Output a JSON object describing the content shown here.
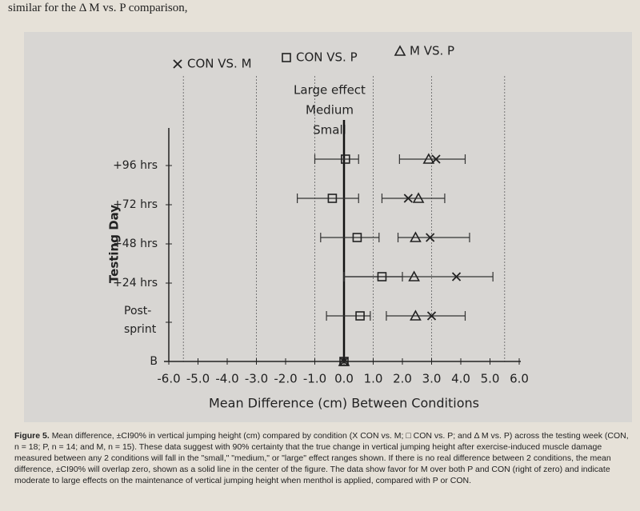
{
  "page_header": "similar for the Δ M vs. P comparison,",
  "chart_data": {
    "type": "forest",
    "y_label": "Testing Day",
    "x_label": "Mean Difference (cm) Between Conditions",
    "categories": [
      "B",
      "Post-sprint",
      "+24 hrs",
      "+48 hrs",
      "+72 hrs",
      "+96 hrs"
    ],
    "xlim": [
      -6,
      6
    ],
    "xticks": [
      {
        "value": -6,
        "label": "-6.0"
      },
      {
        "value": -5,
        "label": "-5.0"
      },
      {
        "value": -4,
        "label": "-4.0"
      },
      {
        "value": -3,
        "label": "-3.0"
      },
      {
        "value": -2,
        "label": "-2.0"
      },
      {
        "value": -1,
        "label": "-1.0"
      },
      {
        "value": 0,
        "label": "0.0"
      },
      {
        "value": 1,
        "label": "1.0"
      },
      {
        "value": 2,
        "label": "2.0"
      },
      {
        "value": 3,
        "label": "3.0"
      },
      {
        "value": 4,
        "label": "4.0"
      },
      {
        "value": 5,
        "label": "5.0"
      },
      {
        "value": 6,
        "label": "6.0"
      }
    ],
    "reference_lines": [
      -5.5,
      -3,
      -1,
      1,
      3,
      5.5
    ],
    "zero_line": 0,
    "annotations": [
      "Large effect",
      "Medium",
      "Small"
    ],
    "series": [
      {
        "name": "CON VS. M",
        "marker": "x",
        "color": "#222222",
        "values": [
          0,
          3.0,
          3.85,
          2.95,
          2.2,
          3.15
        ],
        "lower": [
          null,
          1.45,
          0,
          1.85,
          1.3,
          1.9
        ],
        "upper": [
          null,
          4.15,
          5.1,
          4.3,
          3.45,
          4.15
        ]
      },
      {
        "name": "CON VS. P",
        "marker": "square",
        "color": "#222222",
        "values": [
          0,
          0.55,
          1.3,
          0.45,
          -0.4,
          0.05
        ],
        "lower": [
          null,
          -0.6,
          0,
          -0.8,
          -1.6,
          -1.0
        ],
        "upper": [
          null,
          0.9,
          2.0,
          1.2,
          0.5,
          0.5
        ]
      },
      {
        "name": "M VS. P",
        "marker": "triangle",
        "color": "#222222",
        "values": [
          0,
          2.45,
          2.4,
          2.45,
          2.55,
          2.9
        ]
      }
    ]
  },
  "caption_label": "Figure 5.",
  "caption": "Mean difference, ±CI90% in vertical jumping height (cm) compared by condition (X CON vs. M; □ CON vs. P; and Δ M vs. P) across the testing week (CON, n = 18; P, n = 14; and M, n = 15). These data suggest with 90% certainty that the true change in vertical jumping height after exercise-induced muscle damage measured between any 2 conditions will fall in the \"small,\" \"medium,\" or \"large\" effect ranges shown. If there is no real difference between 2 conditions, the mean difference, ±CI90% will overlap zero, shown as a solid line in the center of the figure. The data show favor for M over both P and CON (right of zero) and indicate moderate to large effects on the maintenance of vertical jumping height when menthol is applied, compared with P or CON."
}
